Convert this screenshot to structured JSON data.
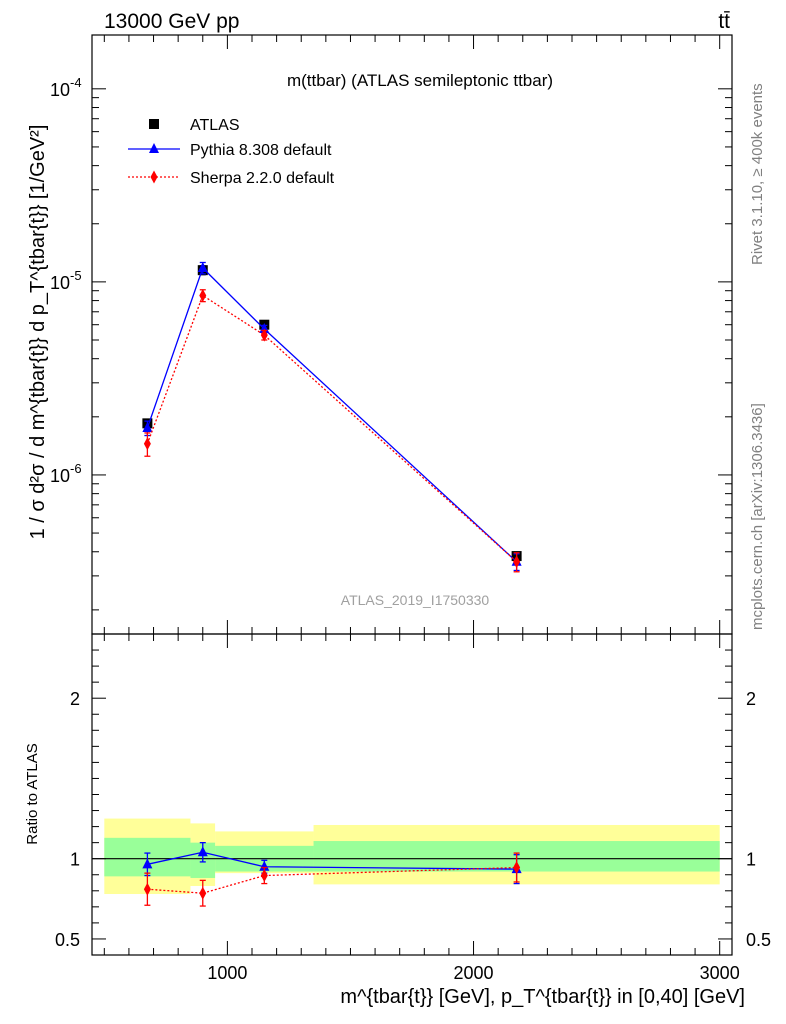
{
  "header": {
    "energy_label": "13000 GeV pp",
    "process_label": "tt̄"
  },
  "side_labels": {
    "rivet": "Rivet 3.1.10, ≥ 400k events",
    "mcplots": "mcplots.cern.ch [arXiv:1306.3436]"
  },
  "chart_data": [
    {
      "type": "scatter",
      "panel": "main",
      "title": "m(ttbar) (ATLAS semileptonic ttbar)",
      "watermark": "ATLAS_2019_I1750330",
      "ylabel": "1 / σ d²σ / d m^{tbar{t}} d p_T^{tbar{t}} [1/GeV²]",
      "yscale": "log",
      "xlim": [
        450,
        3050
      ],
      "ylim": [
        1.5e-07,
        0.00019
      ],
      "y_tick_labels": [
        "10^{-6}",
        "10^{-5}",
        "10^{-4}"
      ],
      "legend": {
        "placement": "top-left",
        "entries": [
          "ATLAS",
          "Pythia 8.308 default",
          "Sherpa 2.2.0 default"
        ]
      },
      "series": [
        {
          "name": "ATLAS",
          "color": "#000000",
          "marker": "square",
          "x": [
            675,
            900,
            1150,
            2175
          ],
          "y": [
            1.85e-06,
            1.15e-05,
            6e-06,
            3.8e-07
          ],
          "yerr": [
            8e-08,
            6e-07,
            2e-07,
            1e-08
          ]
        },
        {
          "name": "Pythia 8.308 default",
          "color": "#0000ff",
          "marker": "triangle",
          "line": "solid",
          "x": [
            675,
            900,
            1150,
            2175
          ],
          "y": [
            1.75e-06,
            1.18e-05,
            5.7e-06,
            3.55e-07
          ],
          "yerr": [
            1.5e-07,
            8e-07,
            2.5e-07,
            3.5e-08
          ]
        },
        {
          "name": "Sherpa 2.2.0 default",
          "color": "#ff0000",
          "marker": "diamond",
          "line": "dotted",
          "x": [
            675,
            900,
            1150,
            2175
          ],
          "y": [
            1.45e-06,
            8.5e-06,
            5.3e-06,
            3.55e-07
          ],
          "yerr": [
            2e-07,
            6e-07,
            3e-07,
            4e-08
          ]
        }
      ]
    },
    {
      "type": "scatter",
      "panel": "ratio",
      "ylabel": "Ratio to ATLAS",
      "xlabel": "m^{tbar{t}} [GeV], p_T^{tbar{t}} in [0,40] [GeV]",
      "xlim": [
        450,
        3050
      ],
      "ylim": [
        0.4,
        2.4
      ],
      "y_tick_labels": [
        "0.5",
        "1",
        "2"
      ],
      "x_tick_labels": [
        "1000",
        "2000",
        "3000"
      ],
      "bands": {
        "edges": [
          500,
          850,
          950,
          1350,
          3000
        ],
        "inner": [
          [
            0.89,
            1.13
          ],
          [
            0.88,
            1.1
          ],
          [
            0.92,
            1.08
          ],
          [
            0.92,
            1.11
          ]
        ],
        "outer": [
          [
            0.78,
            1.25
          ],
          [
            0.83,
            1.22
          ],
          [
            0.91,
            1.17
          ],
          [
            0.84,
            1.21
          ]
        ],
        "inner_color": "#99ff99",
        "outer_color": "#ffff99"
      },
      "series": [
        {
          "name": "Pythia 8.308 default",
          "color": "#0000ff",
          "marker": "triangle",
          "line": "solid",
          "x": [
            675,
            900,
            1150,
            2175
          ],
          "y": [
            0.965,
            1.04,
            0.95,
            0.935
          ],
          "yerr": [
            0.07,
            0.06,
            0.04,
            0.09
          ]
        },
        {
          "name": "Sherpa 2.2.0 default",
          "color": "#ff0000",
          "marker": "diamond",
          "line": "dotted",
          "x": [
            675,
            900,
            1150,
            2175
          ],
          "y": [
            0.81,
            0.785,
            0.895,
            0.945
          ],
          "yerr": [
            0.1,
            0.08,
            0.05,
            0.09
          ]
        }
      ]
    }
  ]
}
